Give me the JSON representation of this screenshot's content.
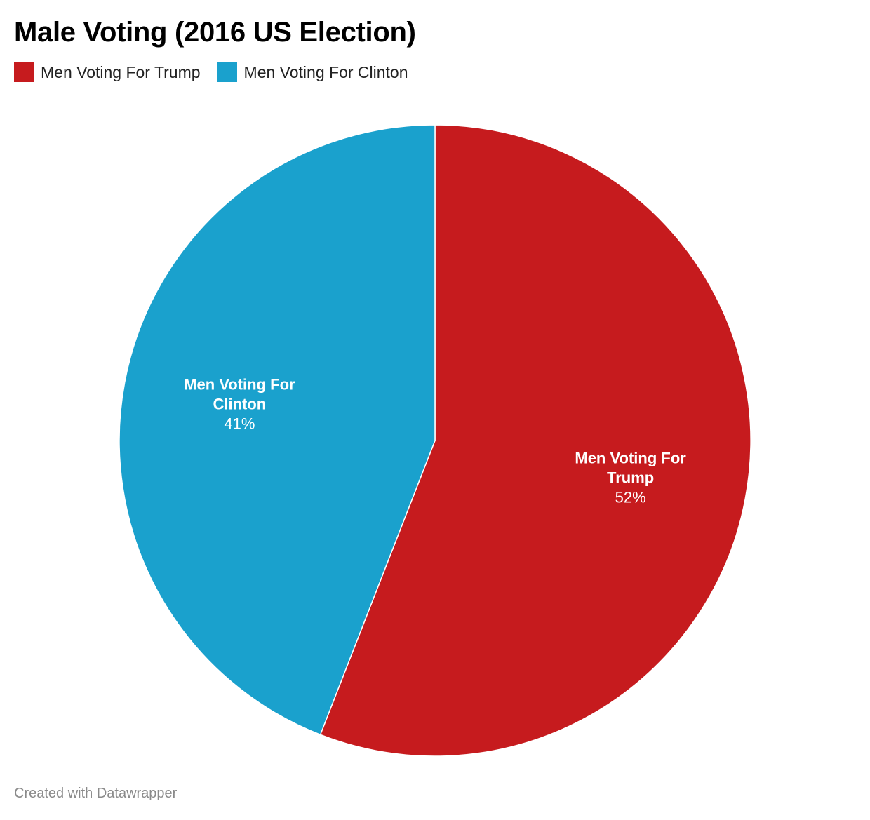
{
  "chart_data": {
    "type": "pie",
    "title": "Male Voting (2016 US Election)",
    "categories": [
      "Men Voting For Trump",
      "Men Voting For Clinton"
    ],
    "values": [
      52,
      41
    ],
    "value_labels": [
      "52%",
      "41%"
    ],
    "slice_label_lines": [
      [
        "Men Voting For",
        "Trump"
      ],
      [
        "Men Voting For",
        "Clinton"
      ]
    ],
    "colors": [
      "#c61b1e",
      "#1aa1cd"
    ],
    "legend": {
      "placement": "top-left",
      "items": [
        {
          "label": "Men Voting For Trump",
          "color": "#c61b1e"
        },
        {
          "label": "Men Voting For Clinton",
          "color": "#1aa1cd"
        }
      ]
    }
  },
  "footer": {
    "credit": "Created with Datawrapper"
  }
}
